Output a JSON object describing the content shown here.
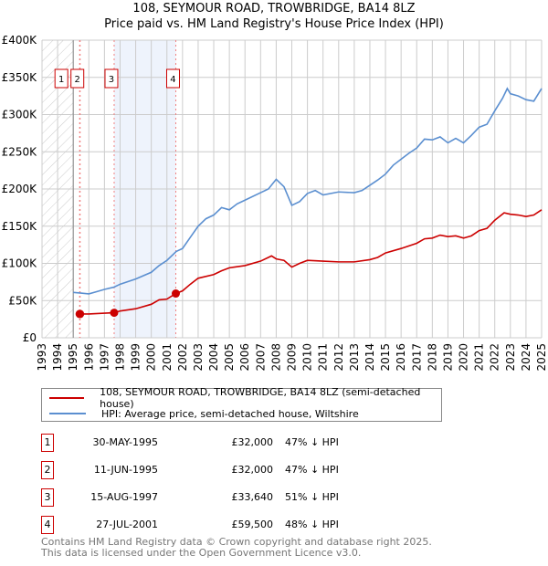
{
  "title": "108, SEYMOUR ROAD, TROWBRIDGE, BA14 8LZ",
  "subtitle": "Price paid vs. HM Land Registry's House Price Index (HPI)",
  "chart_data": {
    "type": "line",
    "xlim": [
      1993,
      2025
    ],
    "ylim": [
      0,
      400000
    ],
    "x_ticks": [
      "1993",
      "1994",
      "1995",
      "1996",
      "1997",
      "1998",
      "1999",
      "2000",
      "2001",
      "2002",
      "2003",
      "2004",
      "2005",
      "2006",
      "2007",
      "2008",
      "2009",
      "2010",
      "2011",
      "2012",
      "2013",
      "2014",
      "2015",
      "2016",
      "2017",
      "2018",
      "2019",
      "2020",
      "2021",
      "2022",
      "2023",
      "2024",
      "2025"
    ],
    "y_ticks": [
      {
        "v": 0,
        "label": "£0"
      },
      {
        "v": 50000,
        "label": "£50K"
      },
      {
        "v": 100000,
        "label": "£100K"
      },
      {
        "v": 150000,
        "label": "£150K"
      },
      {
        "v": 200000,
        "label": "£200K"
      },
      {
        "v": 250000,
        "label": "£250K"
      },
      {
        "v": 300000,
        "label": "£300K"
      },
      {
        "v": 350000,
        "label": "£350K"
      },
      {
        "v": 400000,
        "label": "£400K"
      }
    ],
    "grid": true,
    "hatched_range": [
      1993,
      1995
    ],
    "shaded_range": [
      1997.62,
      2001.57
    ],
    "series": [
      {
        "name": "108, SEYMOUR ROAD, TROWBRIDGE, BA14 8LZ (semi-detached house)",
        "color": "#cc0000",
        "x": [
          1995.41,
          1996,
          1997,
          1997.62,
          1998,
          1999,
          2000,
          2000.5,
          2001,
          2001.57,
          2002,
          2002.5,
          2003,
          2004,
          2004.5,
          2005,
          2006,
          2007,
          2007.7,
          2008,
          2008.5,
          2009,
          2009.5,
          2010,
          2011,
          2012,
          2013,
          2014,
          2014.5,
          2015,
          2016,
          2017,
          2017.5,
          2018,
          2018.5,
          2019,
          2019.5,
          2020,
          2020.5,
          2021,
          2021.5,
          2022,
          2022.6,
          2023,
          2023.5,
          2024,
          2024.5,
          2025
        ],
        "y": [
          32000,
          32000,
          33000,
          33640,
          36000,
          39000,
          45000,
          51000,
          52000,
          59500,
          63000,
          72000,
          80000,
          85000,
          90000,
          94000,
          97000,
          103000,
          110000,
          106000,
          104000,
          95000,
          100000,
          104000,
          103000,
          102000,
          102000,
          105000,
          108000,
          114000,
          120000,
          127000,
          133000,
          134000,
          138000,
          136000,
          137000,
          134000,
          137000,
          144000,
          147000,
          158000,
          168000,
          166000,
          165000,
          163000,
          165000,
          172000
        ]
      },
      {
        "name": "HPI: Average price, semi-detached house, Wiltshire",
        "color": "#5b8fd0",
        "x": [
          1995,
          1995.5,
          1996,
          1996.5,
          1997,
          1997.6,
          1998,
          1999,
          2000,
          2000.5,
          2001,
          2001.6,
          2002,
          2002.5,
          2003,
          2003.5,
          2004,
          2004.5,
          2005,
          2005.5,
          2006,
          2007,
          2007.5,
          2008,
          2008.5,
          2009,
          2009.5,
          2010,
          2010.5,
          2011,
          2012,
          2013,
          2013.5,
          2014,
          2014.5,
          2015,
          2015.5,
          2016,
          2016.5,
          2017,
          2017.5,
          2018,
          2018.5,
          2019,
          2019.5,
          2020,
          2020.5,
          2021,
          2021.5,
          2022,
          2022.5,
          2022.8,
          2023,
          2023.5,
          2024,
          2024.5,
          2025
        ],
        "y": [
          61000,
          60000,
          59000,
          62000,
          65000,
          68000,
          72000,
          79000,
          88000,
          97000,
          104000,
          116000,
          120000,
          135000,
          150000,
          160000,
          165000,
          175000,
          172000,
          180000,
          185000,
          195000,
          200000,
          213000,
          203000,
          178000,
          183000,
          194000,
          198000,
          192000,
          196000,
          195000,
          198000,
          205000,
          212000,
          220000,
          232000,
          240000,
          248000,
          255000,
          267000,
          266000,
          270000,
          262000,
          268000,
          262000,
          272000,
          283000,
          287000,
          305000,
          322000,
          335000,
          328000,
          325000,
          320000,
          318000,
          335000
        ]
      }
    ],
    "sales": [
      {
        "label": "1",
        "x": 1995.41,
        "y": 32000
      },
      {
        "label": "2",
        "x": 1995.44,
        "y": 32000
      },
      {
        "label": "3",
        "x": 1997.62,
        "y": 33640
      },
      {
        "label": "4",
        "x": 2001.57,
        "y": 59500
      }
    ]
  },
  "legend": [
    {
      "label": "108, SEYMOUR ROAD, TROWBRIDGE, BA14 8LZ (semi-detached house)",
      "color": "#cc0000"
    },
    {
      "label": "HPI: Average price, semi-detached house, Wiltshire",
      "color": "#5b8fd0"
    }
  ],
  "transactions": [
    {
      "num": "1",
      "date": "30-MAY-1995",
      "price": "£32,000",
      "hpi": "47% ↓ HPI"
    },
    {
      "num": "2",
      "date": "11-JUN-1995",
      "price": "£32,000",
      "hpi": "47% ↓ HPI"
    },
    {
      "num": "3",
      "date": "15-AUG-1997",
      "price": "£33,640",
      "hpi": "51% ↓ HPI"
    },
    {
      "num": "4",
      "date": "27-JUL-2001",
      "price": "£59,500",
      "hpi": "48% ↓ HPI"
    }
  ],
  "footer": [
    "Contains HM Land Registry data © Crown copyright and database right 2025.",
    "This data is licensed under the Open Government Licence v3.0."
  ]
}
